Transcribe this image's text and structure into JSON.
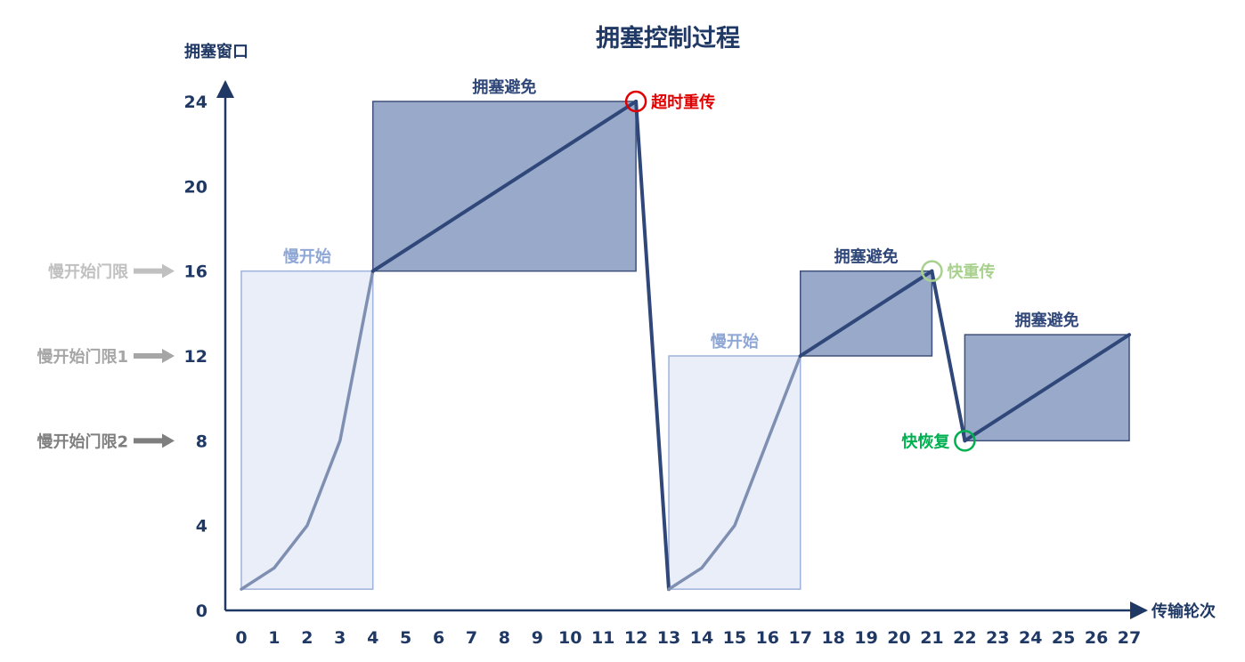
{
  "chart_data": {
    "type": "line",
    "title": "拥塞控制过程",
    "xlabel": "传输轮次",
    "ylabel": "拥塞窗口",
    "xlim": [
      0,
      27
    ],
    "ylim": [
      0,
      24
    ],
    "x_ticks": [
      0,
      1,
      2,
      3,
      4,
      5,
      6,
      7,
      8,
      9,
      10,
      11,
      12,
      13,
      14,
      15,
      16,
      17,
      18,
      19,
      20,
      21,
      22,
      23,
      24,
      25,
      26,
      27
    ],
    "y_ticks": [
      0,
      4,
      8,
      12,
      16,
      20,
      24
    ],
    "grid": false,
    "series": [
      {
        "segments": [
          {
            "phase": "slow-start",
            "color": "#7f8fb2",
            "points": [
              [
                0,
                1
              ],
              [
                1,
                2
              ],
              [
                2,
                4
              ],
              [
                3,
                8
              ],
              [
                4,
                16
              ]
            ]
          },
          {
            "phase": "congestion-avoidance",
            "color": "#2f4779",
            "points": [
              [
                4,
                16
              ],
              [
                12,
                24
              ]
            ]
          },
          {
            "phase": "drop",
            "color": "#2f4779",
            "points": [
              [
                12,
                24
              ],
              [
                13,
                1
              ]
            ]
          },
          {
            "phase": "slow-start",
            "color": "#7f8fb2",
            "points": [
              [
                13,
                1
              ],
              [
                14,
                2
              ],
              [
                15,
                4
              ],
              [
                16,
                8
              ],
              [
                17,
                12
              ]
            ]
          },
          {
            "phase": "congestion-avoidance",
            "color": "#2f4779",
            "points": [
              [
                17,
                12
              ],
              [
                21,
                16
              ]
            ]
          },
          {
            "phase": "drop",
            "color": "#2f4779",
            "points": [
              [
                21,
                16
              ],
              [
                22,
                8
              ]
            ]
          },
          {
            "phase": "congestion-avoidance",
            "color": "#2f4779",
            "points": [
              [
                22,
                8
              ],
              [
                27,
                13
              ]
            ]
          }
        ]
      }
    ],
    "regions": [
      {
        "label": "慢开始",
        "type": "slow-start",
        "x0": 0,
        "x1": 4,
        "y0": 1,
        "y1": 16,
        "fill": "#e9eef8",
        "stroke": "#9fb2dc",
        "label_color": "#8fa7d6"
      },
      {
        "label": "拥塞避免",
        "type": "congestion-avoidance",
        "x0": 4,
        "x1": 12,
        "y0": 16,
        "y1": 24,
        "fill": "#99a9c9",
        "stroke": "#3e5079",
        "label_color": "#2f4779"
      },
      {
        "label": "慢开始",
        "type": "slow-start",
        "x0": 13,
        "x1": 17,
        "y0": 1,
        "y1": 12,
        "fill": "#e9eef8",
        "stroke": "#9fb2dc",
        "label_color": "#8fa7d6"
      },
      {
        "label": "拥塞避免",
        "type": "congestion-avoidance",
        "x0": 17,
        "x1": 21,
        "y0": 12,
        "y1": 16,
        "fill": "#99a9c9",
        "stroke": "#3e5079",
        "label_color": "#2f4779"
      },
      {
        "label": "拥塞避免",
        "type": "congestion-avoidance",
        "x0": 22,
        "x1": 27,
        "y0": 8,
        "y1": 13,
        "fill": "#99a9c9",
        "stroke": "#3e5079",
        "label_color": "#2f4779"
      }
    ],
    "annotations": [
      {
        "label": "超时重传",
        "x": 12,
        "y": 24,
        "color": "#e00000",
        "side": "right"
      },
      {
        "label": "快重传",
        "x": 21,
        "y": 16,
        "color": "#a9d18e",
        "side": "right"
      },
      {
        "label": "快恢复",
        "x": 22,
        "y": 8,
        "color": "#00b050",
        "side": "left"
      }
    ],
    "thresholds": [
      {
        "label": "慢开始门限",
        "y": 16,
        "color": "#c0c0c0"
      },
      {
        "label": "慢开始门限1",
        "y": 12,
        "color": "#a6a6a6"
      },
      {
        "label": "慢开始门限2",
        "y": 8,
        "color": "#7f7f7f"
      }
    ]
  }
}
